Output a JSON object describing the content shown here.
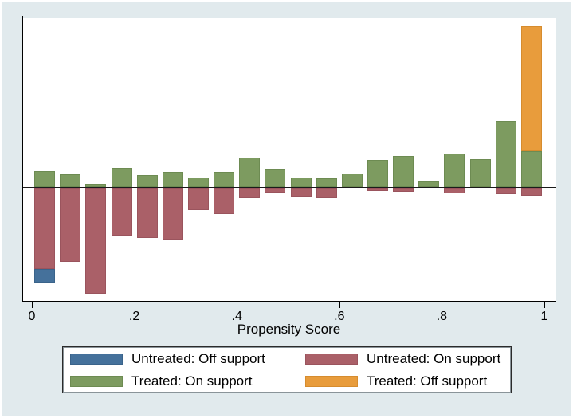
{
  "chart_data": {
    "type": "bar",
    "variant": "stata-psgraph diverging histogram (treated above zero line, untreated below)",
    "title": "",
    "xlabel": "Propensity Score",
    "ylabel": "",
    "x_ticks": [
      {
        "value": 0.0,
        "label": "0"
      },
      {
        "value": 0.2,
        "label": ".2"
      },
      {
        "value": 0.4,
        "label": ".4"
      },
      {
        "value": 0.6,
        "label": ".6"
      },
      {
        "value": 0.8,
        "label": ".8"
      },
      {
        "value": 1.0,
        "label": "1"
      }
    ],
    "xlim": [
      -0.017,
      1.04
    ],
    "y_axis_note": "no y ticks or labels shown; segment values below are bar lengths in screen px from the zero line",
    "value_unit": "px",
    "bar_width_units": 0.04,
    "grid": false,
    "legend_position": "bottom-center, 2x2 boxed",
    "bars": [
      {
        "x": 0.025,
        "treated_on_up": 20,
        "untreated_on_down": 102,
        "untreated_off_down": 17,
        "treated_off_up": 0
      },
      {
        "x": 0.075,
        "treated_on_up": 16,
        "untreated_on_down": 93,
        "untreated_off_down": 0,
        "treated_off_up": 0
      },
      {
        "x": 0.125,
        "treated_on_up": 4,
        "untreated_on_down": 133,
        "untreated_off_down": 0,
        "treated_off_up": 0
      },
      {
        "x": 0.175,
        "treated_on_up": 24,
        "untreated_on_down": 60,
        "untreated_off_down": 0,
        "treated_off_up": 0
      },
      {
        "x": 0.225,
        "treated_on_up": 15,
        "untreated_on_down": 63,
        "untreated_off_down": 0,
        "treated_off_up": 0
      },
      {
        "x": 0.275,
        "treated_on_up": 19,
        "untreated_on_down": 65,
        "untreated_off_down": 0,
        "treated_off_up": 0
      },
      {
        "x": 0.325,
        "treated_on_up": 12,
        "untreated_on_down": 28,
        "untreated_off_down": 0,
        "treated_off_up": 0
      },
      {
        "x": 0.375,
        "treated_on_up": 19,
        "untreated_on_down": 33,
        "untreated_off_down": 0,
        "treated_off_up": 0
      },
      {
        "x": 0.425,
        "treated_on_up": 37,
        "untreated_on_down": 13,
        "untreated_off_down": 0,
        "treated_off_up": 0
      },
      {
        "x": 0.475,
        "treated_on_up": 23,
        "untreated_on_down": 6,
        "untreated_off_down": 0,
        "treated_off_up": 0
      },
      {
        "x": 0.525,
        "treated_on_up": 12,
        "untreated_on_down": 11,
        "untreated_off_down": 0,
        "treated_off_up": 0
      },
      {
        "x": 0.575,
        "treated_on_up": 11,
        "untreated_on_down": 13,
        "untreated_off_down": 0,
        "treated_off_up": 0
      },
      {
        "x": 0.625,
        "treated_on_up": 17,
        "untreated_on_down": 0,
        "untreated_off_down": 0,
        "treated_off_up": 0
      },
      {
        "x": 0.675,
        "treated_on_up": 34,
        "untreated_on_down": 4,
        "untreated_off_down": 0,
        "treated_off_up": 0
      },
      {
        "x": 0.725,
        "treated_on_up": 39,
        "untreated_on_down": 5,
        "untreated_off_down": 0,
        "treated_off_up": 0
      },
      {
        "x": 0.775,
        "treated_on_up": 8,
        "untreated_on_down": 0,
        "untreated_off_down": 0,
        "treated_off_up": 0
      },
      {
        "x": 0.825,
        "treated_on_up": 42,
        "untreated_on_down": 7,
        "untreated_off_down": 0,
        "treated_off_up": 0
      },
      {
        "x": 0.875,
        "treated_on_up": 35,
        "untreated_on_down": 0,
        "untreated_off_down": 0,
        "treated_off_up": 0
      },
      {
        "x": 0.925,
        "treated_on_up": 83,
        "untreated_on_down": 8,
        "untreated_off_down": 0,
        "treated_off_up": 0
      },
      {
        "x": 0.975,
        "treated_on_up": 45,
        "untreated_on_down": 10,
        "untreated_off_down": 0,
        "treated_off_up": 157
      }
    ],
    "legend": [
      {
        "key": "untreated_off",
        "label": "Untreated: Off support",
        "color": "#45719b"
      },
      {
        "key": "untreated_on",
        "label": "Untreated: On support",
        "color": "#aa6068"
      },
      {
        "key": "treated_on",
        "label": "Treated: On support",
        "color": "#7d9b60"
      },
      {
        "key": "treated_off",
        "label": "Treated: Off support",
        "color": "#e89c3c"
      }
    ],
    "colors": {
      "background": "#e1eaed",
      "plot_background": "#ffffff",
      "axis": "#000000",
      "untreated_off": "#45719b",
      "untreated_on": "#aa6068",
      "treated_on": "#7d9b60",
      "treated_off": "#e89c3c"
    }
  }
}
